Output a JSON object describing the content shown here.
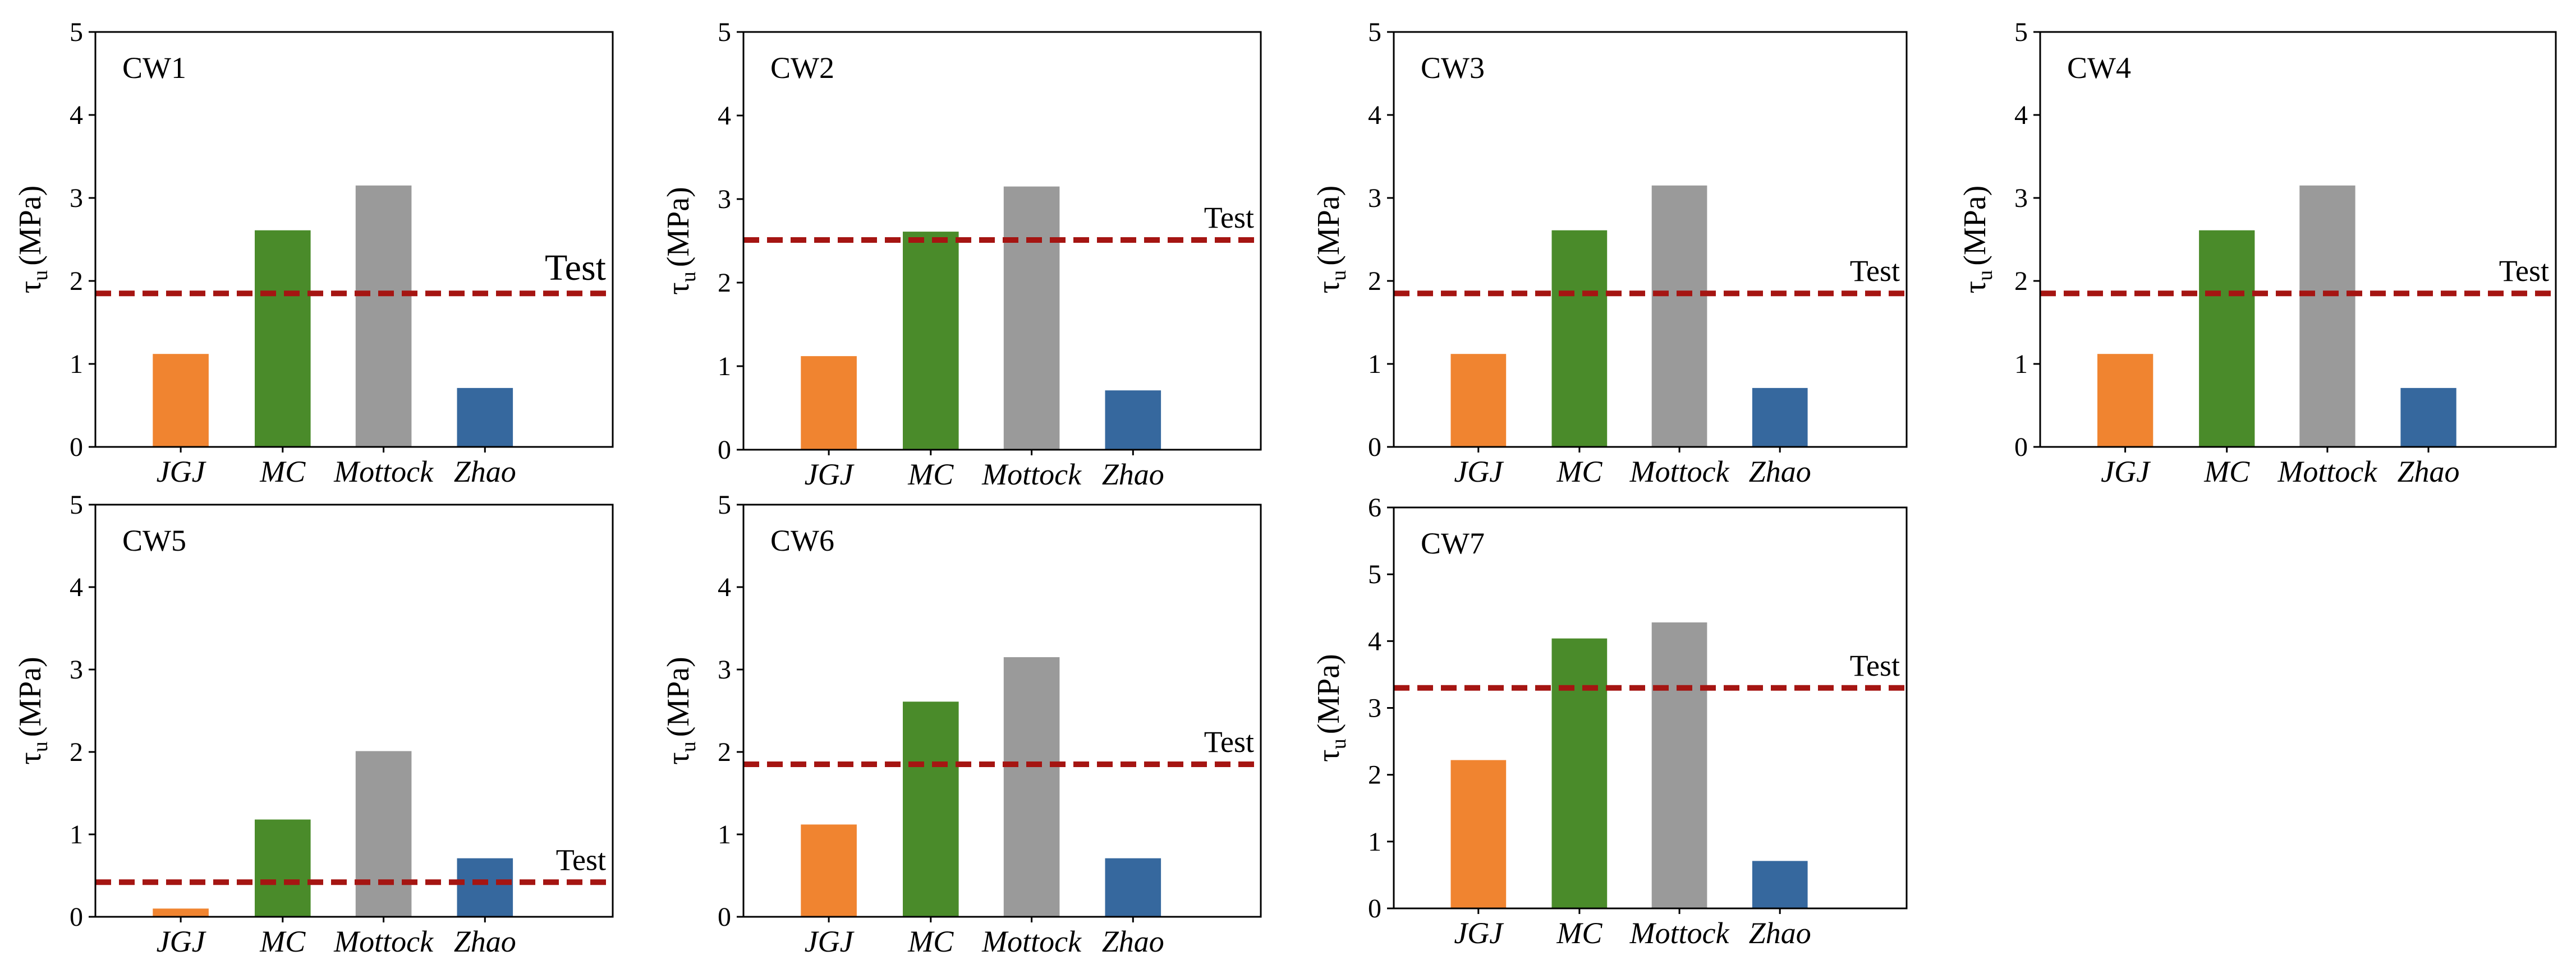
{
  "chart_data": [
    {
      "type": "bar",
      "title": "CW1",
      "ylabel_symbol": "τ",
      "ylabel_sub": "u",
      "ylabel_unit": "(MPa)",
      "categories": [
        "JGJ",
        "MC",
        "Mottock",
        "Zhao"
      ],
      "values": [
        1.12,
        2.61,
        3.15,
        0.71
      ],
      "colors": [
        "#f08430",
        "#4a8b2a",
        "#9a9a9a",
        "#36689e"
      ],
      "ylim": [
        0,
        5
      ],
      "yticks": [
        "0",
        "1",
        "2",
        "3",
        "4",
        "5"
      ],
      "reference_line": {
        "label": "Test",
        "value": 1.85,
        "color": "#a51512",
        "style": "dashed",
        "label_size": "large"
      },
      "grid": false
    },
    {
      "type": "bar",
      "title": "CW2",
      "ylabel_symbol": "τ",
      "ylabel_sub": "u",
      "ylabel_unit": "(MPa)",
      "categories": [
        "JGJ",
        "MC",
        "Mottock",
        "Zhao"
      ],
      "values": [
        1.12,
        2.61,
        3.15,
        0.71
      ],
      "colors": [
        "#f08430",
        "#4a8b2a",
        "#9a9a9a",
        "#36689e"
      ],
      "ylim": [
        0,
        5
      ],
      "yticks": [
        "0",
        "1",
        "2",
        "3",
        "4",
        "5"
      ],
      "reference_line": {
        "label": "Test",
        "value": 2.51,
        "color": "#a51512",
        "style": "dashed"
      },
      "grid": false
    },
    {
      "type": "bar",
      "title": "CW3",
      "ylabel_symbol": "τ",
      "ylabel_sub": "u",
      "ylabel_unit": "(MPa)",
      "categories": [
        "JGJ",
        "MC",
        "Mottock",
        "Zhao"
      ],
      "values": [
        1.12,
        2.61,
        3.15,
        0.71
      ],
      "colors": [
        "#f08430",
        "#4a8b2a",
        "#9a9a9a",
        "#36689e"
      ],
      "ylim": [
        0,
        5
      ],
      "yticks": [
        "0",
        "1",
        "2",
        "3",
        "4",
        "5"
      ],
      "reference_line": {
        "label": "Test",
        "value": 1.85,
        "color": "#a51512",
        "style": "dashed"
      },
      "grid": false
    },
    {
      "type": "bar",
      "title": "CW4",
      "ylabel_symbol": "τ",
      "ylabel_sub": "u",
      "ylabel_unit": "(MPa)",
      "categories": [
        "JGJ",
        "MC",
        "Mottock",
        "Zhao"
      ],
      "values": [
        1.12,
        2.61,
        3.15,
        0.71
      ],
      "colors": [
        "#f08430",
        "#4a8b2a",
        "#9a9a9a",
        "#36689e"
      ],
      "ylim": [
        0,
        5
      ],
      "yticks": [
        "0",
        "1",
        "2",
        "3",
        "4",
        "5"
      ],
      "reference_line": {
        "label": "Test",
        "value": 1.85,
        "color": "#a51512",
        "style": "dashed"
      },
      "grid": false
    },
    {
      "type": "bar",
      "title": "CW5",
      "ylabel_symbol": "τ",
      "ylabel_sub": "u",
      "ylabel_unit": "(MPa)",
      "categories": [
        "JGJ",
        "MC",
        "Mottock",
        "Zhao"
      ],
      "values": [
        0.1,
        1.18,
        2.01,
        0.71
      ],
      "colors": [
        "#f08430",
        "#4a8b2a",
        "#9a9a9a",
        "#36689e"
      ],
      "ylim": [
        0,
        5
      ],
      "yticks": [
        "0",
        "1",
        "2",
        "3",
        "4",
        "5"
      ],
      "reference_line": {
        "label": "Test",
        "value": 0.42,
        "color": "#a51512",
        "style": "dashed"
      },
      "grid": false
    },
    {
      "type": "bar",
      "title": "CW6",
      "ylabel_symbol": "τ",
      "ylabel_sub": "u",
      "ylabel_unit": "(MPa)",
      "categories": [
        "JGJ",
        "MC",
        "Mottock",
        "Zhao"
      ],
      "values": [
        1.12,
        2.61,
        3.15,
        0.71
      ],
      "colors": [
        "#f08430",
        "#4a8b2a",
        "#9a9a9a",
        "#36689e"
      ],
      "ylim": [
        0,
        5
      ],
      "yticks": [
        "0",
        "1",
        "2",
        "3",
        "4",
        "5"
      ],
      "reference_line": {
        "label": "Test",
        "value": 1.85,
        "color": "#a51512",
        "style": "dashed"
      },
      "grid": false
    },
    {
      "type": "bar",
      "title": "CW7",
      "ylabel_symbol": "τ",
      "ylabel_sub": "u",
      "ylabel_unit": "(MPa)",
      "categories": [
        "JGJ",
        "MC",
        "Mottock",
        "Zhao"
      ],
      "values": [
        2.22,
        4.04,
        4.28,
        0.71
      ],
      "colors": [
        "#f08430",
        "#4a8b2a",
        "#9a9a9a",
        "#36689e"
      ],
      "ylim": [
        0,
        6
      ],
      "yticks": [
        "0",
        "1",
        "2",
        "3",
        "4",
        "5",
        "6"
      ],
      "reference_line": {
        "label": "Test",
        "value": 3.3,
        "color": "#a51512",
        "style": "dashed"
      },
      "grid": false
    }
  ]
}
